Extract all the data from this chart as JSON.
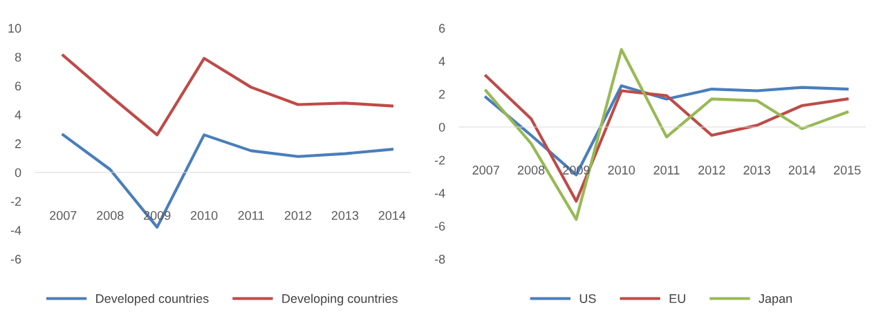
{
  "chart_data": [
    {
      "type": "line",
      "categories": [
        "2007",
        "2008",
        "2009",
        "2010",
        "2011",
        "2012",
        "2013",
        "2014"
      ],
      "ylim": [
        -6,
        10
      ],
      "yticks": [
        -6,
        -4,
        -2,
        0,
        2,
        4,
        6,
        8,
        10
      ],
      "legend": "bottom",
      "marker": "none",
      "series": [
        {
          "name": "Developed countries",
          "color": "#4a7ebb",
          "values": [
            2.6,
            0.2,
            -3.8,
            2.6,
            1.5,
            1.1,
            1.3,
            1.6
          ]
        },
        {
          "name": "Developing countries",
          "color": "#be4b48",
          "values": [
            8.1,
            5.3,
            2.6,
            7.9,
            5.9,
            4.7,
            4.8,
            4.6
          ]
        }
      ]
    },
    {
      "type": "line",
      "categories": [
        "2007",
        "2008",
        "2009",
        "2010",
        "2011",
        "2012",
        "2013",
        "2014",
        "2015"
      ],
      "ylim": [
        -8,
        6
      ],
      "yticks": [
        -8,
        -6,
        -4,
        -2,
        0,
        2,
        4,
        6
      ],
      "legend": "bottom",
      "marker": "none",
      "series": [
        {
          "name": "US",
          "color": "#4a7ebb",
          "values": [
            1.8,
            -0.5,
            -2.9,
            2.5,
            1.7,
            2.3,
            2.2,
            2.4,
            2.3
          ]
        },
        {
          "name": "EU",
          "color": "#be4b48",
          "values": [
            3.1,
            0.5,
            -4.5,
            2.2,
            1.9,
            -0.5,
            0.1,
            1.3,
            1.7
          ]
        },
        {
          "name": "Japan",
          "color": "#98b954",
          "values": [
            2.2,
            -1.0,
            -5.6,
            4.7,
            -0.6,
            1.7,
            1.6,
            -0.1,
            0.9
          ]
        }
      ]
    }
  ]
}
